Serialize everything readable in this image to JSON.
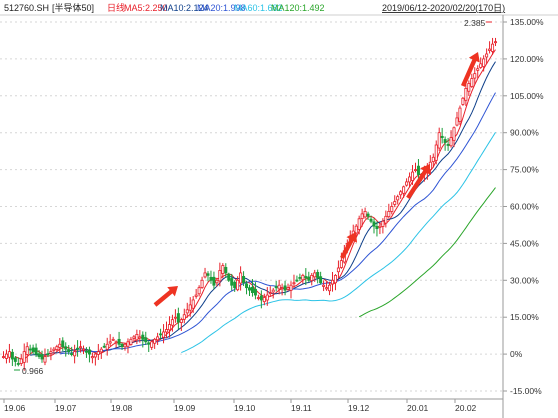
{
  "header": {
    "symbol": "512760.SH",
    "name": "[半导体50]",
    "period": "日线",
    "ma5": "MA5:2.250",
    "ma10": "MA10:2.124",
    "ma20": "MA20:1.998",
    "ma60": "MA60:1.682",
    "ma120": "MA120:1.492",
    "range": "2019/06/12-2020/02/20(170日)"
  },
  "colors": {
    "up": "#e8202a",
    "down": "#1a9c3a",
    "ma5": "#e8202a",
    "ma10": "#0e3f8a",
    "ma20": "#2f55d4",
    "ma60": "#2cc3e6",
    "ma120": "#2aa52a",
    "arrow": "#ee3322"
  },
  "annotations": {
    "high_label": "2.385",
    "low_label": "0.966"
  },
  "chart_data": {
    "type": "candlestick",
    "y_axis_percent_ticks": [
      "135.00%",
      "120.00%",
      "105.00%",
      "90.00%",
      "75.00%",
      "60.00%",
      "45.00%",
      "30.00%",
      "15.00%",
      "0%",
      "-15.00%"
    ],
    "x_tick_labels": [
      "19.06",
      "19.07",
      "19.08",
      "19.09",
      "19.10",
      "19.11",
      "19.12",
      "20.01",
      "20.02"
    ],
    "ylim_percent": [
      -15,
      135
    ],
    "closes_percent": [
      -1,
      0,
      1,
      -2,
      -3,
      -4,
      -2,
      1,
      3,
      2,
      1,
      0,
      -1,
      -2,
      -1,
      0,
      1,
      2,
      3,
      4,
      3,
      2,
      1,
      0,
      1,
      2,
      3,
      2,
      1,
      0,
      -1,
      0,
      1,
      2,
      3,
      4,
      5,
      6,
      5,
      4,
      3,
      4,
      5,
      6,
      7,
      8,
      7,
      6,
      5,
      4,
      5,
      6,
      7,
      8,
      9,
      10,
      12,
      14,
      15,
      13,
      14,
      16,
      18,
      20,
      22,
      24,
      27,
      30,
      33,
      32,
      30,
      28,
      30,
      34,
      36,
      33,
      30,
      28,
      27,
      30,
      33,
      29,
      27,
      26,
      25,
      24,
      23,
      22,
      23,
      24,
      25,
      26,
      27,
      28,
      27,
      26,
      27,
      28,
      29,
      30,
      31,
      32,
      31,
      30,
      32,
      33,
      31,
      29,
      28,
      27,
      28,
      30,
      32,
      35,
      38,
      42,
      45,
      48,
      50,
      52,
      55,
      57,
      58,
      56,
      54,
      52,
      51,
      52,
      54,
      56,
      58,
      60,
      62,
      64,
      66,
      68,
      70,
      72,
      74,
      75,
      73,
      72,
      74,
      76,
      78,
      80,
      85,
      90,
      88,
      86,
      85,
      88,
      92,
      96,
      100,
      104,
      108,
      110,
      112,
      114,
      116,
      118,
      120,
      122,
      124,
      126,
      127
    ],
    "ma60_visible_from_index": 60,
    "ma120_visible_from_index": 120
  }
}
